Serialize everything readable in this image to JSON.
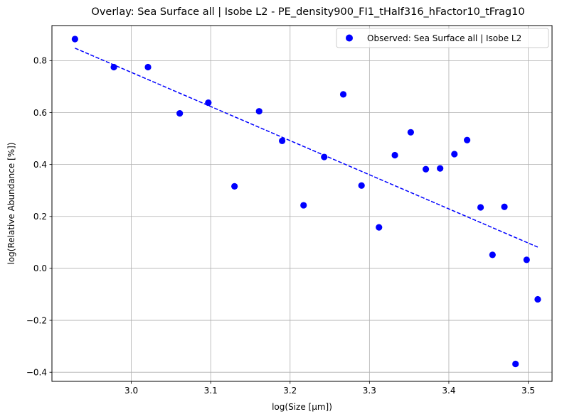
{
  "chart_data": {
    "type": "scatter",
    "title": "Overlay: Sea Surface all | Isobe L2 - PE_density900_FI1_tHalf316_hFactor10_tFrag10",
    "xlabel": "log(Size [μm])",
    "ylabel": "log(Relative Abundance [%])",
    "xlim": [
      2.9,
      3.53
    ],
    "ylim": [
      -0.435,
      0.935
    ],
    "xticks": [
      3.0,
      3.1,
      3.2,
      3.3,
      3.4,
      3.5
    ],
    "xtick_labels": [
      "3.0",
      "3.1",
      "3.2",
      "3.3",
      "3.4",
      "3.5"
    ],
    "yticks": [
      -0.4,
      -0.2,
      0.0,
      0.2,
      0.4,
      0.6,
      0.8
    ],
    "ytick_labels": [
      "−0.4",
      "−0.2",
      "0.0",
      "0.2",
      "0.4",
      "0.6",
      "0.8"
    ],
    "grid": true,
    "legend_position": "top-right",
    "series": [
      {
        "name": "Observed: Sea Surface all | Isobe L2",
        "kind": "scatter",
        "color": "#0000ff",
        "x": [
          2.929,
          2.978,
          3.021,
          3.061,
          3.097,
          3.13,
          3.161,
          3.19,
          3.217,
          3.243,
          3.267,
          3.29,
          3.312,
          3.332,
          3.352,
          3.371,
          3.389,
          3.407,
          3.423,
          3.44,
          3.455,
          3.47,
          3.484,
          3.498,
          3.512
        ],
        "y": [
          0.883,
          0.775,
          0.775,
          0.597,
          0.638,
          0.316,
          0.605,
          0.491,
          0.243,
          0.429,
          0.67,
          0.319,
          0.158,
          0.436,
          0.524,
          0.382,
          0.385,
          0.44,
          0.494,
          0.235,
          0.052,
          0.237,
          -0.368,
          0.033,
          -0.119
        ]
      },
      {
        "name": "",
        "kind": "fit-line",
        "style": "dashed",
        "color": "#0000ff",
        "x": [
          2.929,
          3.512
        ],
        "y": [
          0.848,
          0.082
        ]
      }
    ]
  }
}
